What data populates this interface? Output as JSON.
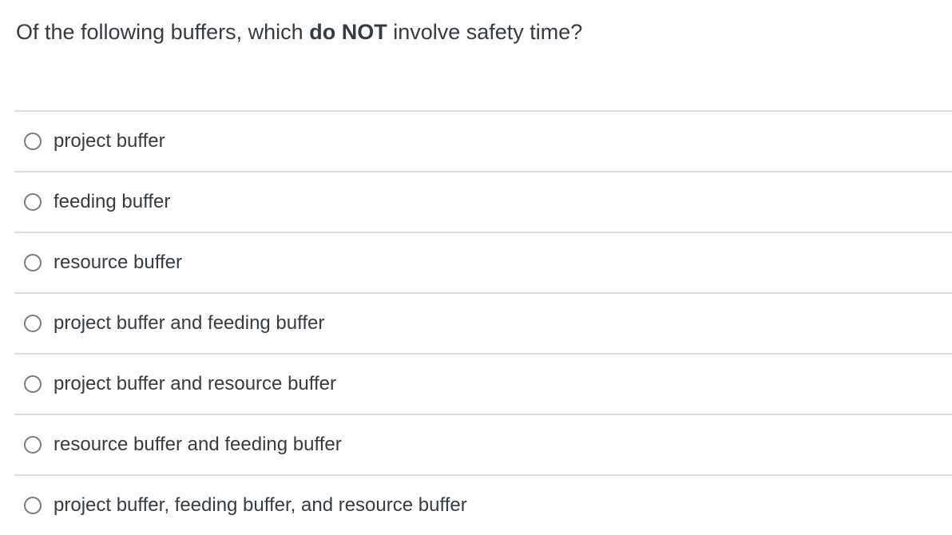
{
  "question": {
    "prefix": "Of the following buffers, which ",
    "bold": "do NOT",
    "suffix": " involve safety time?"
  },
  "options": [
    "project buffer",
    "feeding buffer",
    "resource buffer",
    "project buffer and feeding buffer",
    "project buffer and resource buffer",
    "resource buffer and feeding buffer",
    "project buffer, feeding buffer, and resource buffer"
  ],
  "radio_state": "all unselected",
  "colors": {
    "text": "#363c41",
    "divider": "#dddddd",
    "radio_border": "#7b7b7b",
    "background": "#ffffff"
  }
}
